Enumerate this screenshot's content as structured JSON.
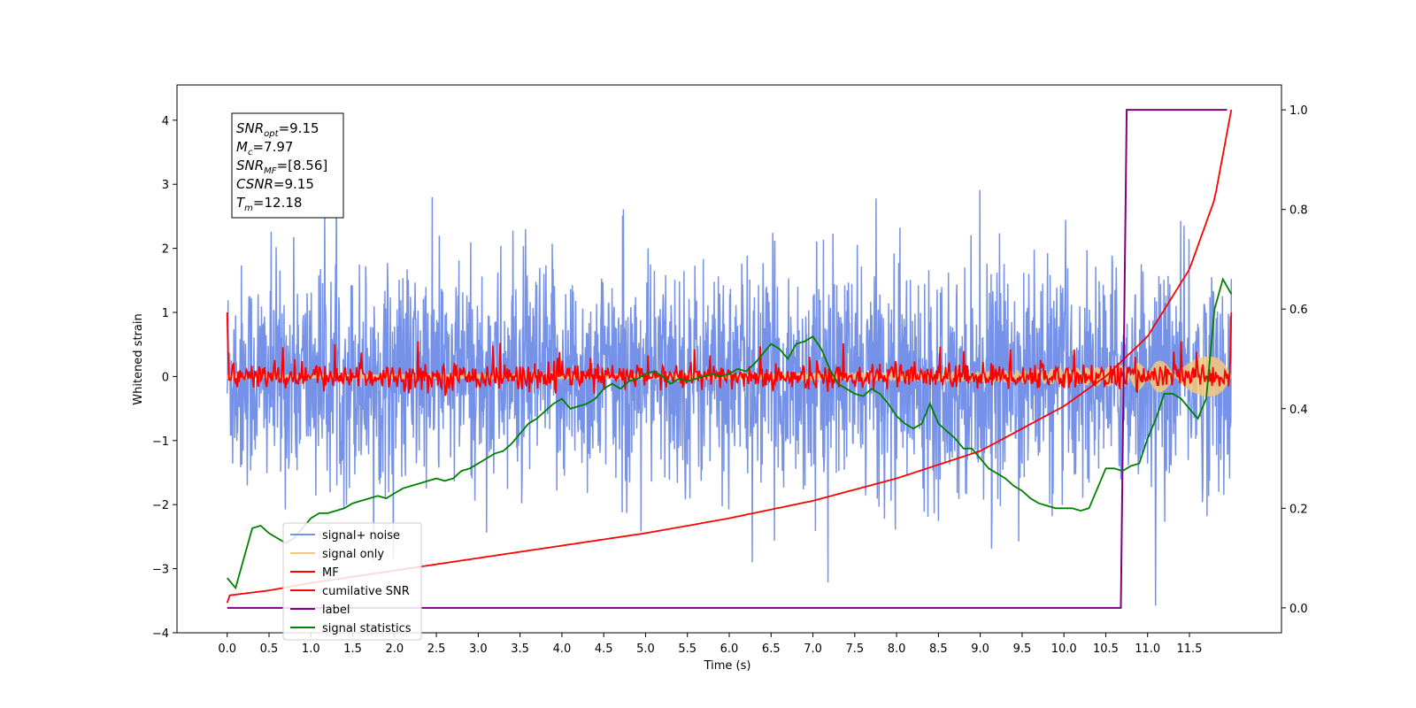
{
  "chart_data": {
    "type": "line",
    "xlabel": "Time (s)",
    "ylabel": "Whitened strain",
    "xlim": [
      -0.6,
      12.6
    ],
    "ylim": [
      -4,
      4.55
    ],
    "y2lim": [
      -0.05,
      1.05
    ],
    "x_ticks": [
      "0.0",
      "0.5",
      "1.0",
      "1.5",
      "2.0",
      "2.5",
      "3.0",
      "3.5",
      "4.0",
      "4.5",
      "5.0",
      "5.5",
      "6.0",
      "6.5",
      "7.0",
      "7.5",
      "8.0",
      "8.5",
      "9.0",
      "9.5",
      "10.0",
      "10.5",
      "11.0",
      "11.5"
    ],
    "y_ticks": [
      "4",
      "3",
      "2",
      "1",
      "0",
      "−1",
      "−2",
      "−3",
      "−4"
    ],
    "y2_ticks": [
      "1.0",
      "0.8",
      "0.6",
      "0.4",
      "0.2",
      "0.0"
    ],
    "annotation": [
      {
        "label": "SNR",
        "sub": "opt",
        "value": "=9.15"
      },
      {
        "label": "M",
        "sub": "c",
        "value": "=7.97"
      },
      {
        "label": "SNR",
        "sub": "MF",
        "value": "=[8.56]"
      },
      {
        "label": "CSNR",
        "sub": "",
        "value": "=9.15"
      },
      {
        "label": "T",
        "sub": "m",
        "value": "=12.18"
      }
    ],
    "legend_position": "lower-left",
    "series": [
      {
        "name": "signal+ noise",
        "color": "#7592e8",
        "axis": "left",
        "kind": "noise",
        "amplitude_sigma": 0.95,
        "x_start": 0.0,
        "x_end": 12.0
      },
      {
        "name": "signal only",
        "color": "#f5c87a",
        "axis": "left",
        "kind": "chirp",
        "envelope": {
          "x": [
            0,
            6,
            9,
            10.5,
            11.5,
            12.0
          ],
          "amp": [
            0.03,
            0.05,
            0.08,
            0.15,
            0.3,
            0.45
          ]
        }
      },
      {
        "name": "MF",
        "color": "#ff0000",
        "axis": "left",
        "kind": "noise",
        "amplitude_sigma": 0.1,
        "x_start": 0.0,
        "x_end": 12.0,
        "edge_values": [
          1.0,
          1.0
        ]
      },
      {
        "name": "cumilative SNR",
        "color": "#ff0000",
        "axis": "right",
        "kind": "curve",
        "x": [
          0,
          0.02,
          0.5,
          1.0,
          2.0,
          3.0,
          4.0,
          5.0,
          6.0,
          7.0,
          8.0,
          9.0,
          10.0,
          10.5,
          11.0,
          11.5,
          11.8,
          12.0
        ],
        "y": [
          0.01,
          0.025,
          0.035,
          0.05,
          0.075,
          0.1,
          0.125,
          0.15,
          0.18,
          0.215,
          0.26,
          0.315,
          0.405,
          0.465,
          0.545,
          0.68,
          0.82,
          1.0
        ]
      },
      {
        "name": "label",
        "color": "#800080",
        "axis": "right",
        "kind": "step",
        "x": [
          0,
          10.68,
          10.75,
          11.95
        ],
        "y": [
          0.0,
          0.0,
          1.0,
          1.0
        ]
      },
      {
        "name": "signal statistics",
        "color": "#008000",
        "axis": "right",
        "kind": "curve",
        "x": [
          0.0,
          0.1,
          0.2,
          0.3,
          0.4,
          0.5,
          0.6,
          0.7,
          0.8,
          0.9,
          1.0,
          1.1,
          1.2,
          1.3,
          1.4,
          1.5,
          1.6,
          1.7,
          1.8,
          1.9,
          2.0,
          2.1,
          2.2,
          2.3,
          2.4,
          2.5,
          2.6,
          2.7,
          2.8,
          2.9,
          3.0,
          3.1,
          3.2,
          3.3,
          3.4,
          3.5,
          3.6,
          3.7,
          3.8,
          3.9,
          4.0,
          4.1,
          4.2,
          4.3,
          4.4,
          4.5,
          4.6,
          4.7,
          4.8,
          4.9,
          5.0,
          5.1,
          5.2,
          5.3,
          5.4,
          5.5,
          5.6,
          5.7,
          5.8,
          5.9,
          6.0,
          6.1,
          6.2,
          6.3,
          6.4,
          6.5,
          6.6,
          6.7,
          6.8,
          6.9,
          7.0,
          7.1,
          7.2,
          7.3,
          7.4,
          7.5,
          7.6,
          7.7,
          7.8,
          7.9,
          8.0,
          8.1,
          8.2,
          8.3,
          8.4,
          8.5,
          8.6,
          8.7,
          8.8,
          8.9,
          9.0,
          9.1,
          9.2,
          9.3,
          9.4,
          9.5,
          9.6,
          9.7,
          9.8,
          9.9,
          10.0,
          10.1,
          10.2,
          10.3,
          10.4,
          10.5,
          10.6,
          10.7,
          10.8,
          10.9,
          11.0,
          11.1,
          11.2,
          11.3,
          11.4,
          11.5,
          11.6,
          11.7,
          11.8,
          11.9,
          12.0
        ],
        "y": [
          0.06,
          0.04,
          0.1,
          0.16,
          0.165,
          0.15,
          0.14,
          0.13,
          0.14,
          0.16,
          0.18,
          0.19,
          0.19,
          0.195,
          0.2,
          0.21,
          0.215,
          0.22,
          0.225,
          0.22,
          0.23,
          0.24,
          0.245,
          0.25,
          0.255,
          0.26,
          0.255,
          0.26,
          0.275,
          0.28,
          0.29,
          0.3,
          0.31,
          0.315,
          0.33,
          0.35,
          0.37,
          0.38,
          0.395,
          0.41,
          0.42,
          0.4,
          0.405,
          0.41,
          0.42,
          0.44,
          0.45,
          0.44,
          0.455,
          0.46,
          0.47,
          0.475,
          0.465,
          0.45,
          0.46,
          0.455,
          0.46,
          0.465,
          0.47,
          0.465,
          0.47,
          0.48,
          0.475,
          0.49,
          0.51,
          0.53,
          0.52,
          0.5,
          0.53,
          0.535,
          0.545,
          0.52,
          0.48,
          0.45,
          0.44,
          0.43,
          0.425,
          0.44,
          0.43,
          0.41,
          0.385,
          0.37,
          0.36,
          0.37,
          0.41,
          0.37,
          0.355,
          0.34,
          0.32,
          0.32,
          0.3,
          0.28,
          0.27,
          0.26,
          0.245,
          0.235,
          0.22,
          0.21,
          0.205,
          0.2,
          0.2,
          0.2,
          0.195,
          0.2,
          0.24,
          0.28,
          0.28,
          0.275,
          0.285,
          0.29,
          0.34,
          0.38,
          0.43,
          0.43,
          0.42,
          0.4,
          0.38,
          0.42,
          0.6,
          0.66,
          0.63
        ]
      }
    ]
  }
}
